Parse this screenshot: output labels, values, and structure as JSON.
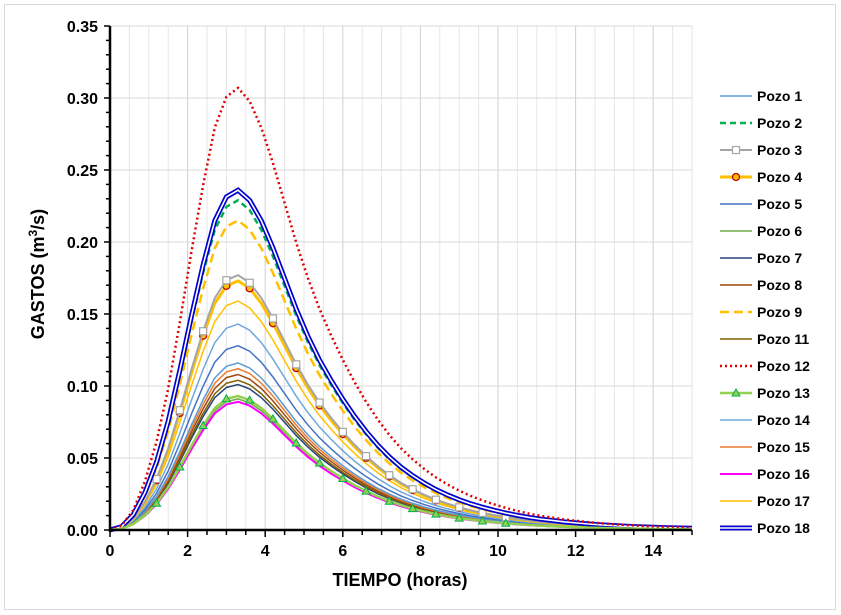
{
  "chart_data": {
    "type": "line",
    "title": "",
    "xlabel": "TIEMPO (horas)",
    "ylabel_main": "GASTOS (m",
    "ylabel_sup": "3",
    "ylabel_tail": "/s)",
    "xlim": [
      0,
      15
    ],
    "ylim": [
      0,
      0.35
    ],
    "grid": true,
    "legend_position": "right",
    "x_ticks": [
      0,
      2,
      4,
      6,
      8,
      10,
      12,
      14
    ],
    "x_tick_labels": [
      "0",
      "2",
      "4",
      "6",
      "8",
      "10",
      "12",
      "14"
    ],
    "y_ticks": [
      0,
      0.05,
      0.1,
      0.15,
      0.2,
      0.25,
      0.3,
      0.35
    ],
    "y_tick_labels": [
      "0.00",
      "0.05",
      "0.10",
      "0.15",
      "0.20",
      "0.25",
      "0.30",
      "0.35"
    ],
    "shape_x": [
      0,
      0.3,
      0.6,
      0.9,
      1.2,
      1.5,
      1.8,
      2.1,
      2.4,
      2.7,
      3.0,
      3.3,
      3.6,
      3.9,
      4.2,
      4.5,
      4.8,
      5.1,
      5.4,
      5.7,
      6.0,
      6.3,
      6.6,
      6.9,
      7.2,
      7.5,
      7.8,
      8.1,
      8.4,
      8.7,
      9.0,
      9.3,
      9.6,
      9.9,
      10.2,
      10.5,
      10.8,
      11.1,
      11.4,
      11.7,
      12.0,
      12.3,
      12.6,
      12.9,
      13.2,
      13.5,
      13.8,
      14.1,
      14.4,
      14.7,
      15.0
    ],
    "shape_y": [
      0,
      0.01,
      0.045,
      0.11,
      0.2,
      0.32,
      0.47,
      0.63,
      0.78,
      0.91,
      0.98,
      1.0,
      0.97,
      0.91,
      0.83,
      0.74,
      0.65,
      0.57,
      0.5,
      0.44,
      0.385,
      0.335,
      0.29,
      0.25,
      0.215,
      0.185,
      0.16,
      0.138,
      0.119,
      0.103,
      0.089,
      0.077,
      0.067,
      0.058,
      0.05,
      0.043,
      0.037,
      0.032,
      0.028,
      0.024,
      0.021,
      0.018,
      0.0155,
      0.0135,
      0.0117,
      0.0101,
      0.0088,
      0.0077,
      0.0067,
      0.0058,
      0.005
    ],
    "series": [
      {
        "name": "Pozo 1",
        "peak": 0.116,
        "color": "#5b9bd5",
        "dash": "",
        "width": 1.5,
        "marker": "none"
      },
      {
        "name": "Pozo 2",
        "peak": 0.229,
        "color": "#00b050",
        "dash": "6,4",
        "width": 2.5,
        "marker": "none"
      },
      {
        "name": "Pozo 3",
        "peak": 0.177,
        "color": "#a5a5a5",
        "dash": "",
        "width": 2,
        "marker": "square"
      },
      {
        "name": "Pozo 4",
        "peak": 0.173,
        "color": "#ffc000",
        "dash": "",
        "width": 3,
        "marker": "circle"
      },
      {
        "name": "Pozo 5",
        "peak": 0.128,
        "color": "#4472c4",
        "dash": "",
        "width": 1.5,
        "marker": "none"
      },
      {
        "name": "Pozo 6",
        "peak": 0.091,
        "color": "#70ad47",
        "dash": "",
        "width": 1.5,
        "marker": "none"
      },
      {
        "name": "Pozo 7",
        "peak": 0.101,
        "color": "#264478",
        "dash": "",
        "width": 1.5,
        "marker": "none"
      },
      {
        "name": "Pozo 8",
        "peak": 0.108,
        "color": "#9e480e",
        "dash": "",
        "width": 1.5,
        "marker": "none"
      },
      {
        "name": "Pozo 9",
        "peak": 0.215,
        "color": "#ffc000",
        "dash": "9,5",
        "width": 2.5,
        "marker": "none"
      },
      {
        "name": "Pozo 11",
        "peak": 0.104,
        "color": "#7f6000",
        "dash": "",
        "width": 1.5,
        "marker": "none"
      },
      {
        "name": "Pozo 12",
        "peak": 0.307,
        "color": "#e00000",
        "dash": "2,3",
        "width": 2.5,
        "marker": "none"
      },
      {
        "name": "Pozo 13",
        "peak": 0.093,
        "color": "#92d050",
        "dash": "",
        "width": 2.5,
        "marker": "triangle"
      },
      {
        "name": "Pozo 14",
        "peak": 0.143,
        "color": "#6fa8dc",
        "dash": "",
        "width": 1.5,
        "marker": "none"
      },
      {
        "name": "Pozo 15",
        "peak": 0.112,
        "color": "#ed7d31",
        "dash": "",
        "width": 1.5,
        "marker": "none"
      },
      {
        "name": "Pozo 16",
        "peak": 0.089,
        "color": "#ff00ff",
        "dash": "",
        "width": 2,
        "marker": "none"
      },
      {
        "name": "Pozo 17",
        "peak": 0.159,
        "color": "#ffc000",
        "dash": "",
        "width": 1.5,
        "marker": "none"
      },
      {
        "name": "Pozo 18",
        "peak": 0.236,
        "color": "#0000cc",
        "dash": "",
        "width": 2,
        "marker": "double"
      }
    ]
  }
}
